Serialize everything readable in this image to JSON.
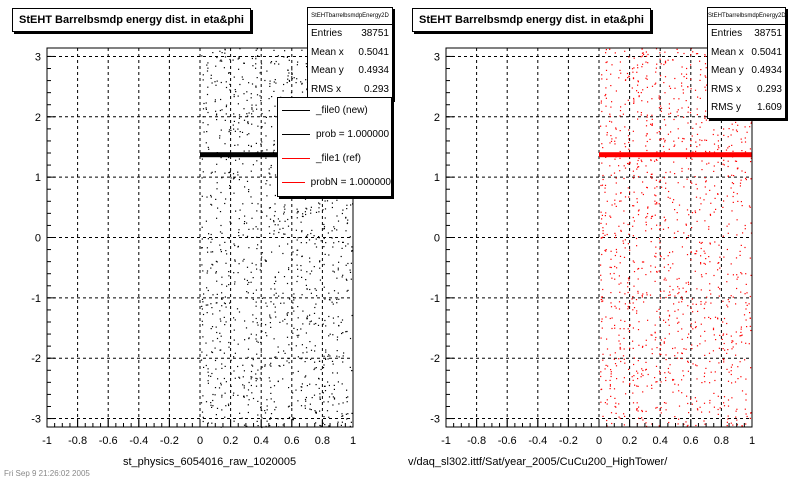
{
  "footer_text": "Fri Sep  9 21:26:02 2005",
  "legend": {
    "entries": [
      {
        "label": "_file0 (new)",
        "color": "#000000"
      },
      {
        "label": "prob = 1.000000",
        "color": "#000000"
      },
      {
        "label": "_file1 (ref)",
        "color": "#ff0000"
      },
      {
        "label": "probN = 1.000000",
        "color": "#ff0000"
      }
    ]
  },
  "chart_data": [
    {
      "type": "scatter",
      "title": "StEHT Barrelbsmdp energy dist. in eta&phi",
      "xlabel": "st_physics_6054016_raw_1020005",
      "ylabel": "",
      "xlim": [
        -1,
        1
      ],
      "ylim": [
        -3.14,
        3.14
      ],
      "xticks": [
        "-1",
        "-0.8",
        "-0.6",
        "-0.4",
        "-0.2",
        "0",
        "0.2",
        "0.4",
        "0.6",
        "0.8",
        "1"
      ],
      "yticks": [
        "-3",
        "-2",
        "-1",
        "0",
        "1",
        "2",
        "3"
      ],
      "grid": true,
      "marker_color": "#000000",
      "data_x_range": [
        0,
        1
      ],
      "band": {
        "y": 1.38,
        "x_range": [
          0,
          1
        ]
      },
      "stats": {
        "name": "StEHTbarrelbsmdpEnergy2D",
        "rows": [
          {
            "label": "Entries",
            "value": "38751"
          },
          {
            "label": "Mean x",
            "value": "0.5041"
          },
          {
            "label": "Mean y",
            "value": "0.4934"
          },
          {
            "label": "RMS x",
            "value": "0.293"
          }
        ]
      }
    },
    {
      "type": "scatter",
      "title": "StEHT Barrelbsmdp energy dist. in eta&phi",
      "xlabel": "v/daq_sl302.ittf/Sat/year_2005/CuCu200_HighTower/",
      "ylabel": "",
      "xlim": [
        -1,
        1
      ],
      "ylim": [
        -3.14,
        3.14
      ],
      "xticks": [
        "-1",
        "-0.8",
        "-0.6",
        "-0.4",
        "-0.2",
        "0",
        "0.2",
        "0.4",
        "0.6",
        "0.8",
        "1"
      ],
      "yticks": [
        "-3",
        "-2",
        "-1",
        "0",
        "1",
        "2",
        "3"
      ],
      "grid": true,
      "marker_color": "#ff0000",
      "data_x_range": [
        0,
        1
      ],
      "band": {
        "y": 1.38,
        "x_range": [
          0,
          1
        ]
      },
      "stats": {
        "name": "StEHTbarrelbsmdpEnergy2D",
        "rows": [
          {
            "label": "Entries",
            "value": "38751"
          },
          {
            "label": "Mean x",
            "value": "0.5041"
          },
          {
            "label": "Mean y",
            "value": "0.4934"
          },
          {
            "label": "RMS x",
            "value": "0.293"
          },
          {
            "label": "RMS y",
            "value": "1.609"
          }
        ]
      }
    }
  ]
}
